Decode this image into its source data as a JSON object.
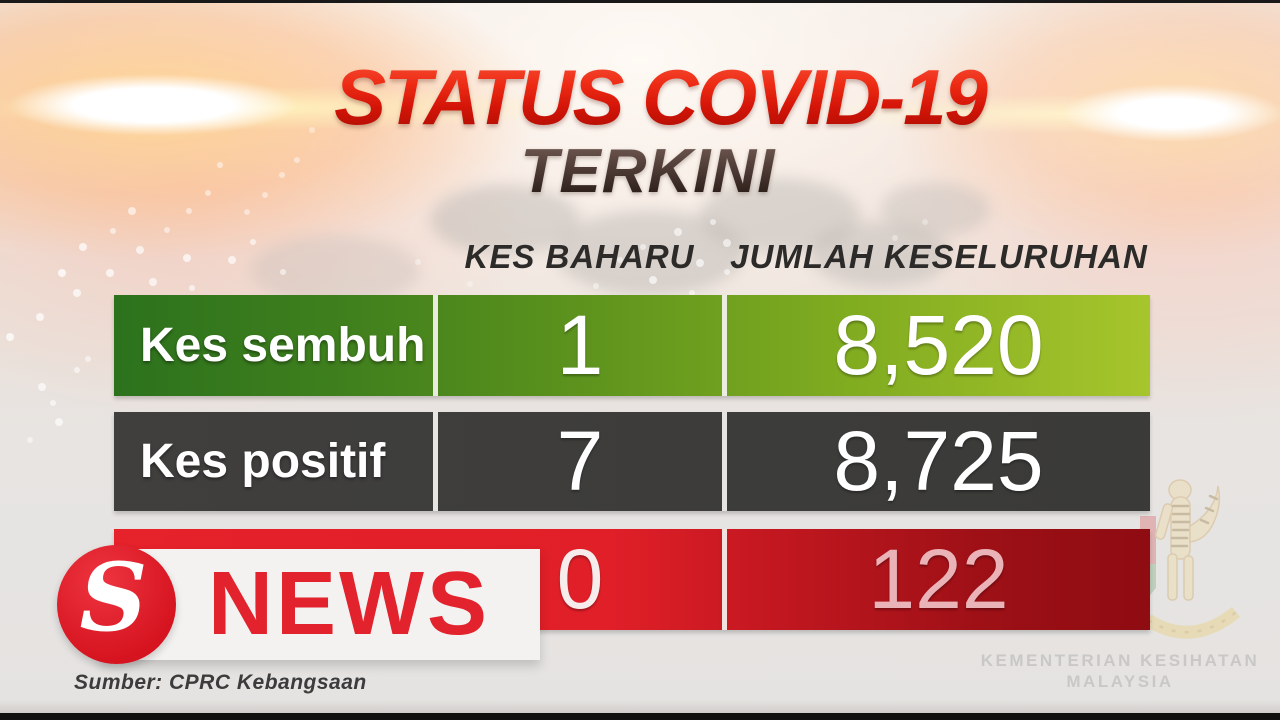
{
  "header": {
    "title": "STATUS COVID-19",
    "subtitle": "TERKINI"
  },
  "table": {
    "columns": {
      "new_cases": "KES BAHARU",
      "total": "JUMLAH KESELURUHAN"
    },
    "rows": [
      {
        "label": "Kes sembuh",
        "new_cases": "1",
        "total": "8,520"
      },
      {
        "label": "Kes positif",
        "new_cases": "7",
        "total": "8,725"
      },
      {
        "label": "",
        "new_cases": "0",
        "total": "122"
      }
    ]
  },
  "branding": {
    "logo_letter": "S",
    "logo_word": "NEWS"
  },
  "footer": {
    "source": "Sumber: CPRC Kebangsaan"
  },
  "watermark": {
    "ministry_line1": "KEMENTERIAN KESIHATAN",
    "ministry_line2": "MALAYSIA"
  },
  "colors": {
    "title_red": "#e2170b",
    "subtitle_dark": "#32231d",
    "row_recovered_left": "#2c721d",
    "row_recovered_right": "#a7c52c",
    "row_positive": "#3b3b39",
    "row_deaths_left": "#e6222b",
    "row_deaths_right": "#8e0c12",
    "star_logo_red": "#e2222c",
    "deaths_total_text": "#eab3b8",
    "ministry_text": "#c9c8c6"
  },
  "chart_data": {
    "type": "table",
    "title": "STATUS COVID-19 TERKINI",
    "columns": [
      "KES BAHARU",
      "JUMLAH KESELURUHAN"
    ],
    "rows": [
      {
        "label": "Kes sembuh",
        "kes_baharu": 1,
        "jumlah_keseluruhan": 8520
      },
      {
        "label": "Kes positif",
        "kes_baharu": 7,
        "jumlah_keseluruhan": 8725
      },
      {
        "label": "",
        "kes_baharu": 0,
        "jumlah_keseluruhan": 122
      }
    ],
    "source": "Sumber: CPRC Kebangsaan",
    "notes": "third row label hidden behind news logo overlay"
  }
}
